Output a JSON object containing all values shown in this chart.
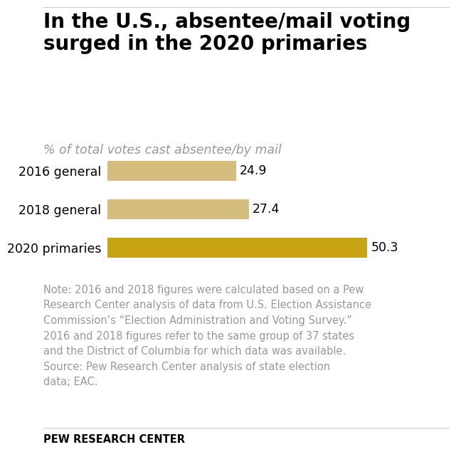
{
  "title": "In the U.S., absentee/mail voting\nsurged in the 2020 primaries",
  "subtitle": "% of total votes cast absentee/by mail",
  "categories": [
    "2016 general",
    "2018 general",
    "2020 primaries"
  ],
  "values": [
    24.9,
    27.4,
    50.3
  ],
  "bar_colors": [
    "#D4BC7D",
    "#D4BC7D",
    "#C8A415"
  ],
  "xlim": [
    0,
    58
  ],
  "background_color": "#ffffff",
  "title_fontsize": 20,
  "subtitle_fontsize": 12.5,
  "label_fontsize": 12.5,
  "value_fontsize": 12.5,
  "note_text": "Note: 2016 and 2018 figures were calculated based on a Pew\nResearch Center analysis of data from U.S. Election Assistance\nCommission’s “Election Administration and Voting Survey.”\n2016 and 2018 figures refer to the same group of 37 states\nand the District of Columbia for which data was available.\nSource: Pew Research Center analysis of state election\ndata; EAC.",
  "footer_text": "PEW RESEARCH CENTER",
  "note_fontsize": 10.5,
  "footer_fontsize": 10.5,
  "title_color": "#000000",
  "subtitle_color": "#999999",
  "bar_label_color": "#000000",
  "note_color": "#999999",
  "footer_color": "#000000",
  "top_line_color": "#cccccc",
  "footer_line_color": "#cccccc"
}
